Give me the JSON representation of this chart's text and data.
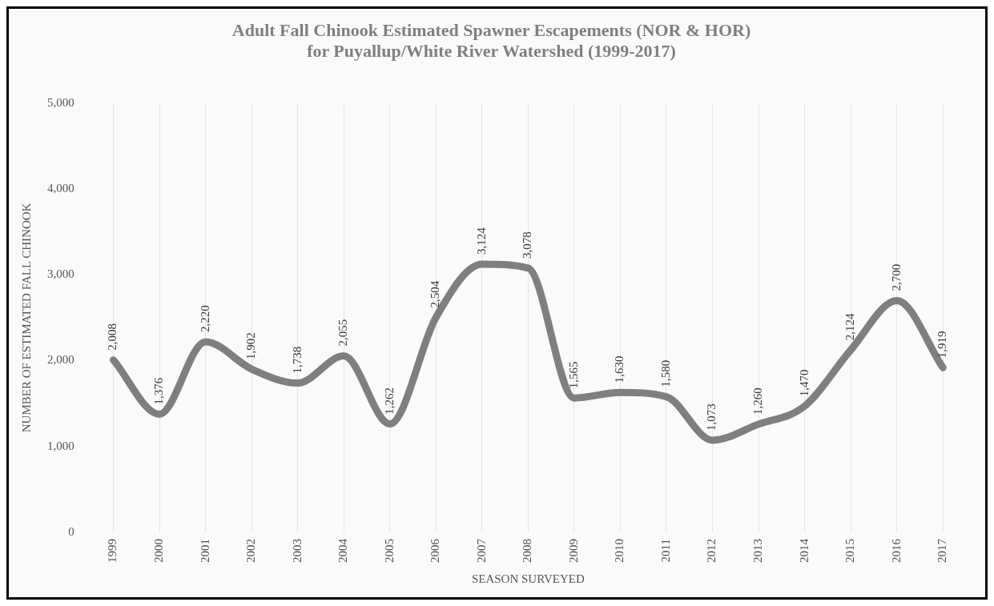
{
  "chart_data": {
    "type": "line",
    "title": "Adult Fall Chinook Estimated Spawner Escapements (NOR & HOR)\nfor Puyallup/White River Watershed (1999-2017)",
    "xlabel": "SEASON SURVEYED",
    "ylabel": "NUMBER OF ESTIMATED FALL CHINOOK",
    "categories": [
      "1999",
      "2000",
      "2001",
      "2002",
      "2003",
      "2004",
      "2005",
      "2006",
      "2007",
      "2008",
      "2009",
      "2010",
      "2011",
      "2012",
      "2013",
      "2014",
      "2015",
      "2016",
      "2017"
    ],
    "series": [
      {
        "color": "#7f7f7f",
        "values": [
          2008,
          1376,
          2220,
          1902,
          1738,
          2055,
          1262,
          2504,
          3124,
          3078,
          1565,
          1630,
          1580,
          1073,
          1260,
          1470,
          2124,
          2700,
          1919
        ],
        "value_labels": [
          "2,008",
          "1,376",
          "2,220",
          "1,902",
          "1,738",
          "2,055",
          "1,262",
          "2,504",
          "3,124",
          "3,078",
          "1,565",
          "1,630",
          "1,580",
          "1,073",
          "1,260",
          "1,470",
          "2,124",
          "2,700",
          "1,919"
        ]
      }
    ],
    "ylim": [
      0,
      5000
    ],
    "yticks": [
      0,
      {
        "value": 1000,
        "label": "1,000"
      },
      {
        "value": 2000,
        "label": "2,000"
      },
      {
        "value": 3000,
        "label": "3,000"
      },
      {
        "value": 4000,
        "label": "4,000"
      },
      {
        "value": 5000,
        "label": "5,000"
      }
    ],
    "grid": "x",
    "legend": false,
    "marker": "none",
    "line_style": "solid"
  }
}
